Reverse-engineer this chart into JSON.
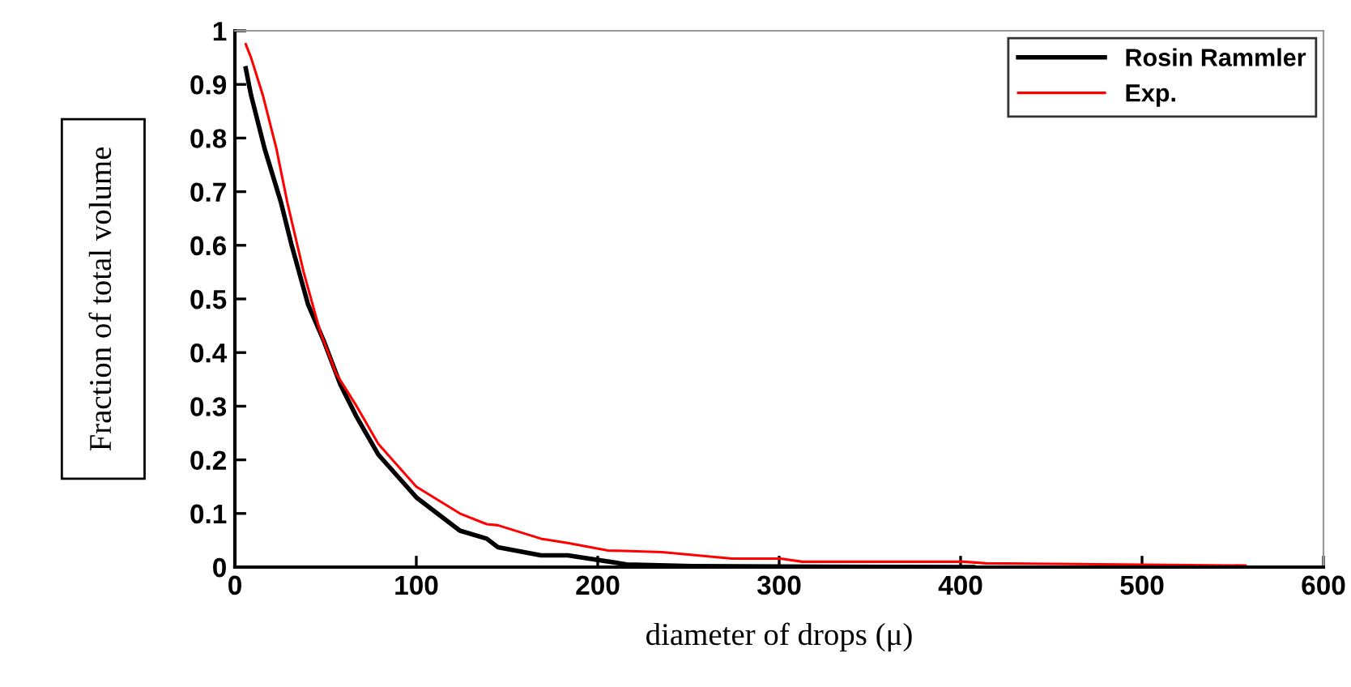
{
  "chart_data": {
    "type": "line",
    "xlabel": "diameter of drops (μ)",
    "ylabel": "Fraction of total volume",
    "xlim": [
      0,
      600
    ],
    "xticks": [
      0,
      100,
      200,
      300,
      400,
      500,
      600
    ],
    "ylim": [
      0,
      1
    ],
    "yticks": [
      0,
      0.1,
      0.2,
      0.3,
      0.4,
      0.5,
      0.6,
      0.7,
      0.8,
      0.9,
      1
    ],
    "grid": false,
    "legend": "top right",
    "marker": "none",
    "line_style": "solid",
    "series": [
      {
        "name": "Rosin Rammler",
        "color": "#000000",
        "x": [
          6,
          8.9,
          16.4,
          25.4,
          31.3,
          40.3,
          49.2,
          58.2,
          67.1,
          79,
          100,
          124,
          138.8,
          145,
          168.7,
          183.5,
          216,
          252,
          300,
          407
        ],
        "values": [
          0.93,
          0.88,
          0.78,
          0.68,
          0.6,
          0.49,
          0.42,
          0.34,
          0.28,
          0.21,
          0.13,
          0.068,
          0.053,
          0.037,
          0.022,
          0.022,
          0.005,
          0.002,
          0.001,
          0
        ]
      },
      {
        "name": "Exp.",
        "color": "#ff0000",
        "x": [
          6,
          8.9,
          15.4,
          22.9,
          28.9,
          37.9,
          46.9,
          55.9,
          67.1,
          79,
          100,
          124,
          138.8,
          145,
          168.7,
          183.5,
          205.6,
          235.5,
          274,
          300.8,
          312.7,
          402,
          414,
          557
        ],
        "values": [
          0.975,
          0.95,
          0.88,
          0.78,
          0.68,
          0.55,
          0.44,
          0.36,
          0.3,
          0.23,
          0.15,
          0.1,
          0.08,
          0.078,
          0.053,
          0.045,
          0.031,
          0.028,
          0.016,
          0.016,
          0.01,
          0.01,
          0.007,
          0.003
        ]
      }
    ]
  }
}
